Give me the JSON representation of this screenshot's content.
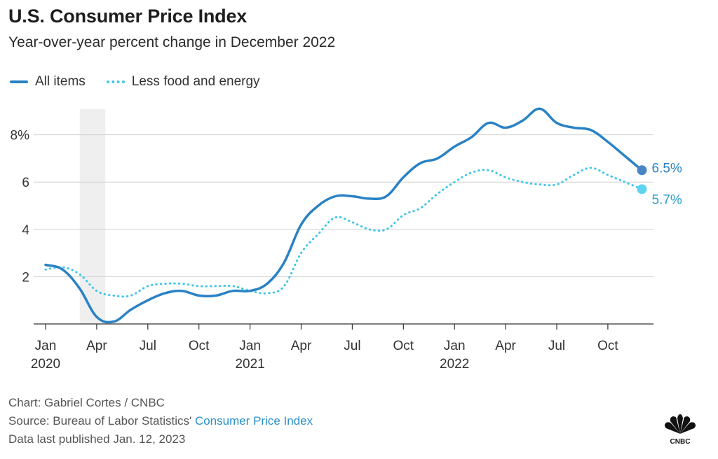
{
  "header": {
    "title": "U.S. Consumer Price Index",
    "subtitle": "Year-over-year percent change in December 2022"
  },
  "legend": {
    "all_items": "All items",
    "core": "Less food and energy"
  },
  "colors": {
    "all_items": "#2a82c6",
    "core": "#3ec7e6",
    "grid": "#d0d0d0",
    "shade": "#efefef"
  },
  "footer": {
    "credit": "Chart: Gabriel Cortes / CNBC",
    "source_prefix": "Source: Bureau of Labor Statistics'",
    "source_link": "Consumer Price Index",
    "published": "Data last published Jan. 12, 2023"
  },
  "logo": {
    "name": "cnbc-peacock-icon",
    "text": "CNBC"
  },
  "chart_data": {
    "type": "line",
    "title": "U.S. Consumer Price Index",
    "subtitle": "Year-over-year percent change in December 2022",
    "x_ticks": [
      {
        "index": 0,
        "label": "Jan",
        "year": "2020"
      },
      {
        "index": 3,
        "label": "Apr",
        "year": ""
      },
      {
        "index": 6,
        "label": "Jul",
        "year": ""
      },
      {
        "index": 9,
        "label": "Oct",
        "year": ""
      },
      {
        "index": 12,
        "label": "Jan",
        "year": "2021"
      },
      {
        "index": 15,
        "label": "Apr",
        "year": ""
      },
      {
        "index": 18,
        "label": "Jul",
        "year": ""
      },
      {
        "index": 21,
        "label": "Oct",
        "year": ""
      },
      {
        "index": 24,
        "label": "Jan",
        "year": "2022"
      },
      {
        "index": 27,
        "label": "Apr",
        "year": ""
      },
      {
        "index": 30,
        "label": "Jul",
        "year": ""
      },
      {
        "index": 33,
        "label": "Oct",
        "year": ""
      }
    ],
    "y_ticks": [
      {
        "value": 2,
        "label": "2"
      },
      {
        "value": 4,
        "label": "4"
      },
      {
        "value": 6,
        "label": "6"
      },
      {
        "value": 8,
        "label": "8%"
      }
    ],
    "ylim": [
      0,
      9
    ],
    "months": [
      "2020-01",
      "2020-02",
      "2020-03",
      "2020-04",
      "2020-05",
      "2020-06",
      "2020-07",
      "2020-08",
      "2020-09",
      "2020-10",
      "2020-11",
      "2020-12",
      "2021-01",
      "2021-02",
      "2021-03",
      "2021-04",
      "2021-05",
      "2021-06",
      "2021-07",
      "2021-08",
      "2021-09",
      "2021-10",
      "2021-11",
      "2021-12",
      "2022-01",
      "2022-02",
      "2022-03",
      "2022-04",
      "2022-05",
      "2022-06",
      "2022-07",
      "2022-08",
      "2022-09",
      "2022-10",
      "2022-11",
      "2022-12"
    ],
    "shaded_period": {
      "from": "2020-03",
      "to": "2020-04"
    },
    "series": [
      {
        "name": "All items",
        "style": "solid",
        "values": [
          2.5,
          2.3,
          1.5,
          0.3,
          0.1,
          0.6,
          1.0,
          1.3,
          1.4,
          1.2,
          1.2,
          1.4,
          1.4,
          1.7,
          2.6,
          4.2,
          5.0,
          5.4,
          5.4,
          5.3,
          5.4,
          6.2,
          6.8,
          7.0,
          7.5,
          7.9,
          8.5,
          8.3,
          8.6,
          9.1,
          8.5,
          8.3,
          8.2,
          7.7,
          7.1,
          6.5
        ],
        "end_label": "6.5%"
      },
      {
        "name": "Less food and energy",
        "style": "dotted",
        "values": [
          2.3,
          2.4,
          2.1,
          1.4,
          1.2,
          1.2,
          1.6,
          1.7,
          1.7,
          1.6,
          1.6,
          1.6,
          1.4,
          1.3,
          1.6,
          3.0,
          3.8,
          4.5,
          4.3,
          4.0,
          4.0,
          4.6,
          4.9,
          5.5,
          6.0,
          6.4,
          6.5,
          6.2,
          6.0,
          5.9,
          5.9,
          6.3,
          6.6,
          6.3,
          6.0,
          5.7
        ],
        "end_label": "5.7%"
      }
    ]
  }
}
